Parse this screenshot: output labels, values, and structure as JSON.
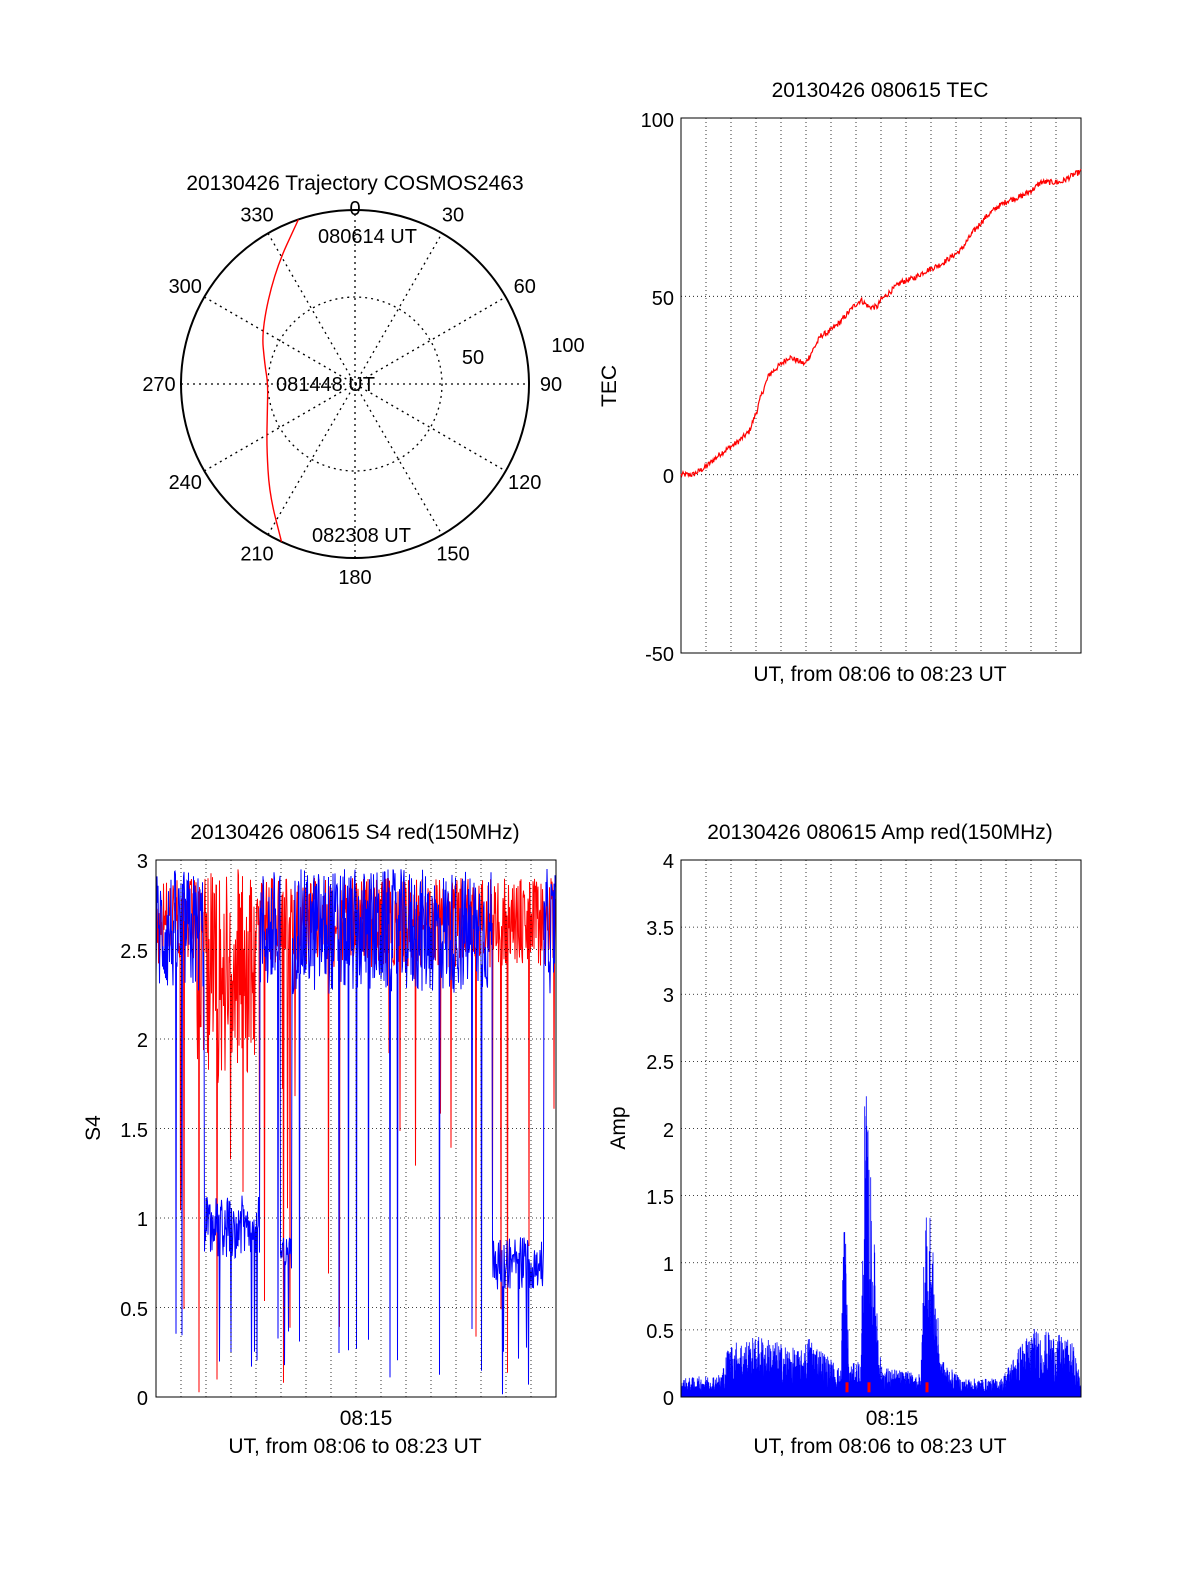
{
  "chart_data": [
    {
      "type": "polar",
      "title": "20130426 Trajectory COSMOS2463",
      "angle_labels": [
        "0",
        "30",
        "60",
        "90",
        "120",
        "150",
        "180",
        "210",
        "240",
        "270",
        "300",
        "330"
      ],
      "radius_labels": [
        "50",
        "100"
      ],
      "rlim": [
        0,
        100
      ],
      "track_color": "#ff0000",
      "trajectory": [
        {
          "az": 341,
          "el_r": 100,
          "label": "080614 UT"
        },
        {
          "az": 325,
          "el_r": 80
        },
        {
          "az": 300,
          "el_r": 62
        },
        {
          "az": 282,
          "el_r": 53
        },
        {
          "az": 270,
          "el_r": 50,
          "label": "081448 UT"
        },
        {
          "az": 252,
          "el_r": 53
        },
        {
          "az": 235,
          "el_r": 62
        },
        {
          "az": 218,
          "el_r": 80
        },
        {
          "az": 205,
          "el_r": 100,
          "label": "082308 UT"
        }
      ]
    },
    {
      "type": "line",
      "title": "20130426 080615 TEC",
      "xlabel": "UT, from 08:06 to 08:23 UT",
      "ylabel": "TEC",
      "ylim": [
        -50,
        100
      ],
      "yticks": [
        "100",
        "50",
        "0",
        "-50"
      ],
      "grid": true,
      "series": [
        {
          "color": "#ff0000",
          "x": [
            0,
            0.03,
            0.06,
            0.1,
            0.14,
            0.17,
            0.19,
            0.2,
            0.22,
            0.25,
            0.27,
            0.29,
            0.31,
            0.33,
            0.35,
            0.37,
            0.4,
            0.43,
            0.45,
            0.47,
            0.49,
            0.5,
            0.53,
            0.55,
            0.58,
            0.61,
            0.65,
            0.7,
            0.73,
            0.76,
            0.79,
            0.82,
            0.85,
            0.88,
            0.9,
            0.92,
            0.95,
            0.98,
            1.0
          ],
          "values": [
            0,
            0,
            2,
            6,
            9,
            12,
            18,
            22,
            28,
            31,
            33,
            32,
            31,
            35,
            39,
            40,
            43,
            47,
            49,
            47,
            47,
            49,
            52,
            54,
            55,
            57,
            59,
            63,
            68,
            72,
            75,
            77,
            78,
            80,
            82,
            82,
            82,
            84,
            85
          ]
        }
      ]
    },
    {
      "type": "line",
      "title": "20130426 080615 S4 red(150MHz)",
      "xlabel": "UT, from 08:06 to 08:23 UT",
      "ylabel": "S4",
      "ylim": [
        0,
        3
      ],
      "yticks": [
        "3",
        "2.5",
        "2",
        "1.5",
        "1",
        "0.5",
        "0"
      ],
      "xticks": [
        "08:15"
      ],
      "grid": true,
      "series": [
        {
          "color": "#ff0000"
        },
        {
          "color": "#0000ff"
        }
      ]
    },
    {
      "type": "line",
      "title": "20130426 080615 Amp red(150MHz)",
      "xlabel": "UT, from 08:06 to 08:23 UT",
      "ylabel": "Amp",
      "ylim": [
        0,
        4
      ],
      "yticks": [
        "4",
        "3.5",
        "3",
        "2.5",
        "2",
        "1.5",
        "1",
        "0.5",
        "0"
      ],
      "xticks": [
        "08:15"
      ],
      "grid": true,
      "series": [
        {
          "color": "#0000ff",
          "x": [
            0.0,
            0.1,
            0.12,
            0.2,
            0.3,
            0.32,
            0.4,
            0.405,
            0.41,
            0.42,
            0.45,
            0.46,
            0.465,
            0.5,
            0.6,
            0.61,
            0.62,
            0.65,
            0.7,
            0.8,
            0.85,
            0.88,
            0.95,
            0.98,
            1.0
          ],
          "values": [
            0.12,
            0.15,
            0.35,
            0.4,
            0.3,
            0.4,
            0.18,
            1.2,
            1.25,
            0.2,
            0.25,
            2.1,
            1.9,
            0.2,
            0.15,
            1.35,
            1.3,
            0.25,
            0.12,
            0.12,
            0.35,
            0.45,
            0.4,
            0.35,
            0.1
          ]
        },
        {
          "color": "#ff0000",
          "x": [
            0.415,
            0.47,
            0.615
          ],
          "values": [
            0.05,
            0.05,
            0.05
          ]
        }
      ]
    }
  ]
}
